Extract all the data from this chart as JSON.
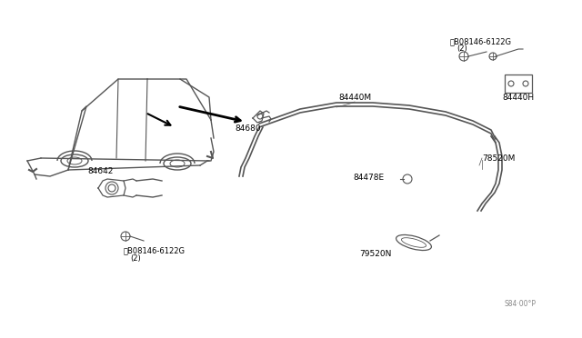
{
  "bg_color": "#ffffff",
  "fig_width": 6.4,
  "fig_height": 3.72,
  "dpi": 100,
  "title": "",
  "labels": {
    "B08146_top": "B08146-6122G",
    "B08146_top_sub": "(2)",
    "84440H": "84440H",
    "84440M": "84440M",
    "84680": "84680",
    "78520M": "78520M",
    "84478E": "84478E",
    "84642": "84642",
    "B08146_bot": "B08146-6122G",
    "B08146_bot_sub": "(2)",
    "79520N": "79520N",
    "diagram_code": "S84·00°P"
  },
  "line_color": "#555555",
  "text_color": "#000000",
  "label_fontsize": 6.5,
  "car_color": "#888888"
}
